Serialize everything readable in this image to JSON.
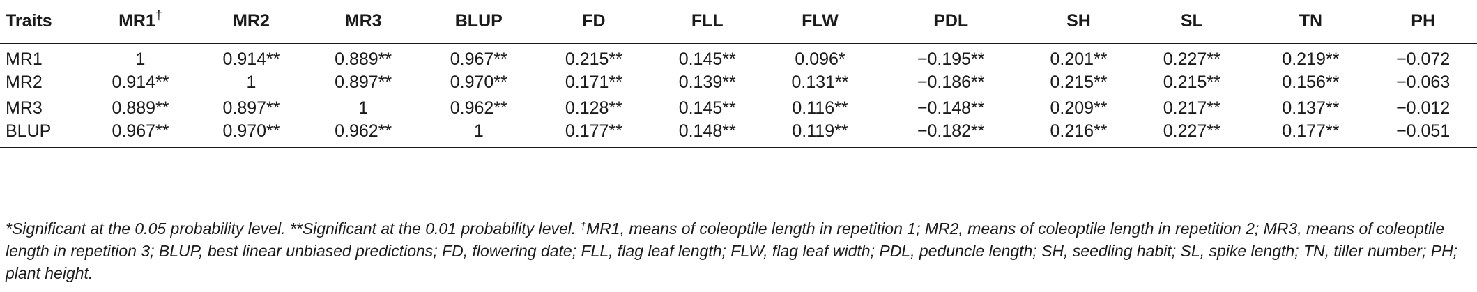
{
  "table": {
    "header": {
      "traits": "Traits",
      "columns": [
        "MR1",
        "MR2",
        "MR3",
        "BLUP",
        "FD",
        "FLL",
        "FLW",
        "PDL",
        "SH",
        "SL",
        "TN",
        "PH"
      ],
      "mr1_mark": "†"
    },
    "rows": [
      {
        "label": "MR1",
        "cells": [
          "1",
          "0.914**",
          "0.889**",
          "0.967**",
          "0.215**",
          "0.145**",
          "0.096*",
          "−0.195**",
          "0.201**",
          "0.227**",
          "0.219**",
          "−0.072"
        ]
      },
      {
        "label": "MR2",
        "cells": [
          "0.914**",
          "1",
          "0.897**",
          "0.970**",
          "0.171**",
          "0.139**",
          "0.131**",
          "−0.186**",
          "0.215**",
          "0.215**",
          "0.156**",
          "−0.063"
        ]
      },
      {
        "label": "MR3",
        "cells": [
          "0.889**",
          "0.897**",
          "1",
          "0.962**",
          "0.128**",
          "0.145**",
          "0.116**",
          "−0.148**",
          "0.209**",
          "0.217**",
          "0.137**",
          "−0.012"
        ]
      },
      {
        "label": "BLUP",
        "cells": [
          "0.967**",
          "0.970**",
          "0.962**",
          "1",
          "0.177**",
          "0.148**",
          "0.119**",
          "−0.182**",
          "0.216**",
          "0.227**",
          "0.177**",
          "−0.051"
        ]
      }
    ]
  },
  "footnote": {
    "part1": "*Significant at the 0.05 probability level. **Significant at the 0.01 probability level. ",
    "dagger": "†",
    "part2": "MR1, means of coleoptile length in repetition 1; MR2, means of coleoptile length in repetition 2; MR3, means of coleoptile length in repetition 3; BLUP, best linear unbiased predictions; FD, flowering date; FLL, flag leaf length; FLW, flag leaf width; PDL, peduncle length; SH, seedling habit; SL, spike length; TN, tiller number; PH; plant height."
  }
}
